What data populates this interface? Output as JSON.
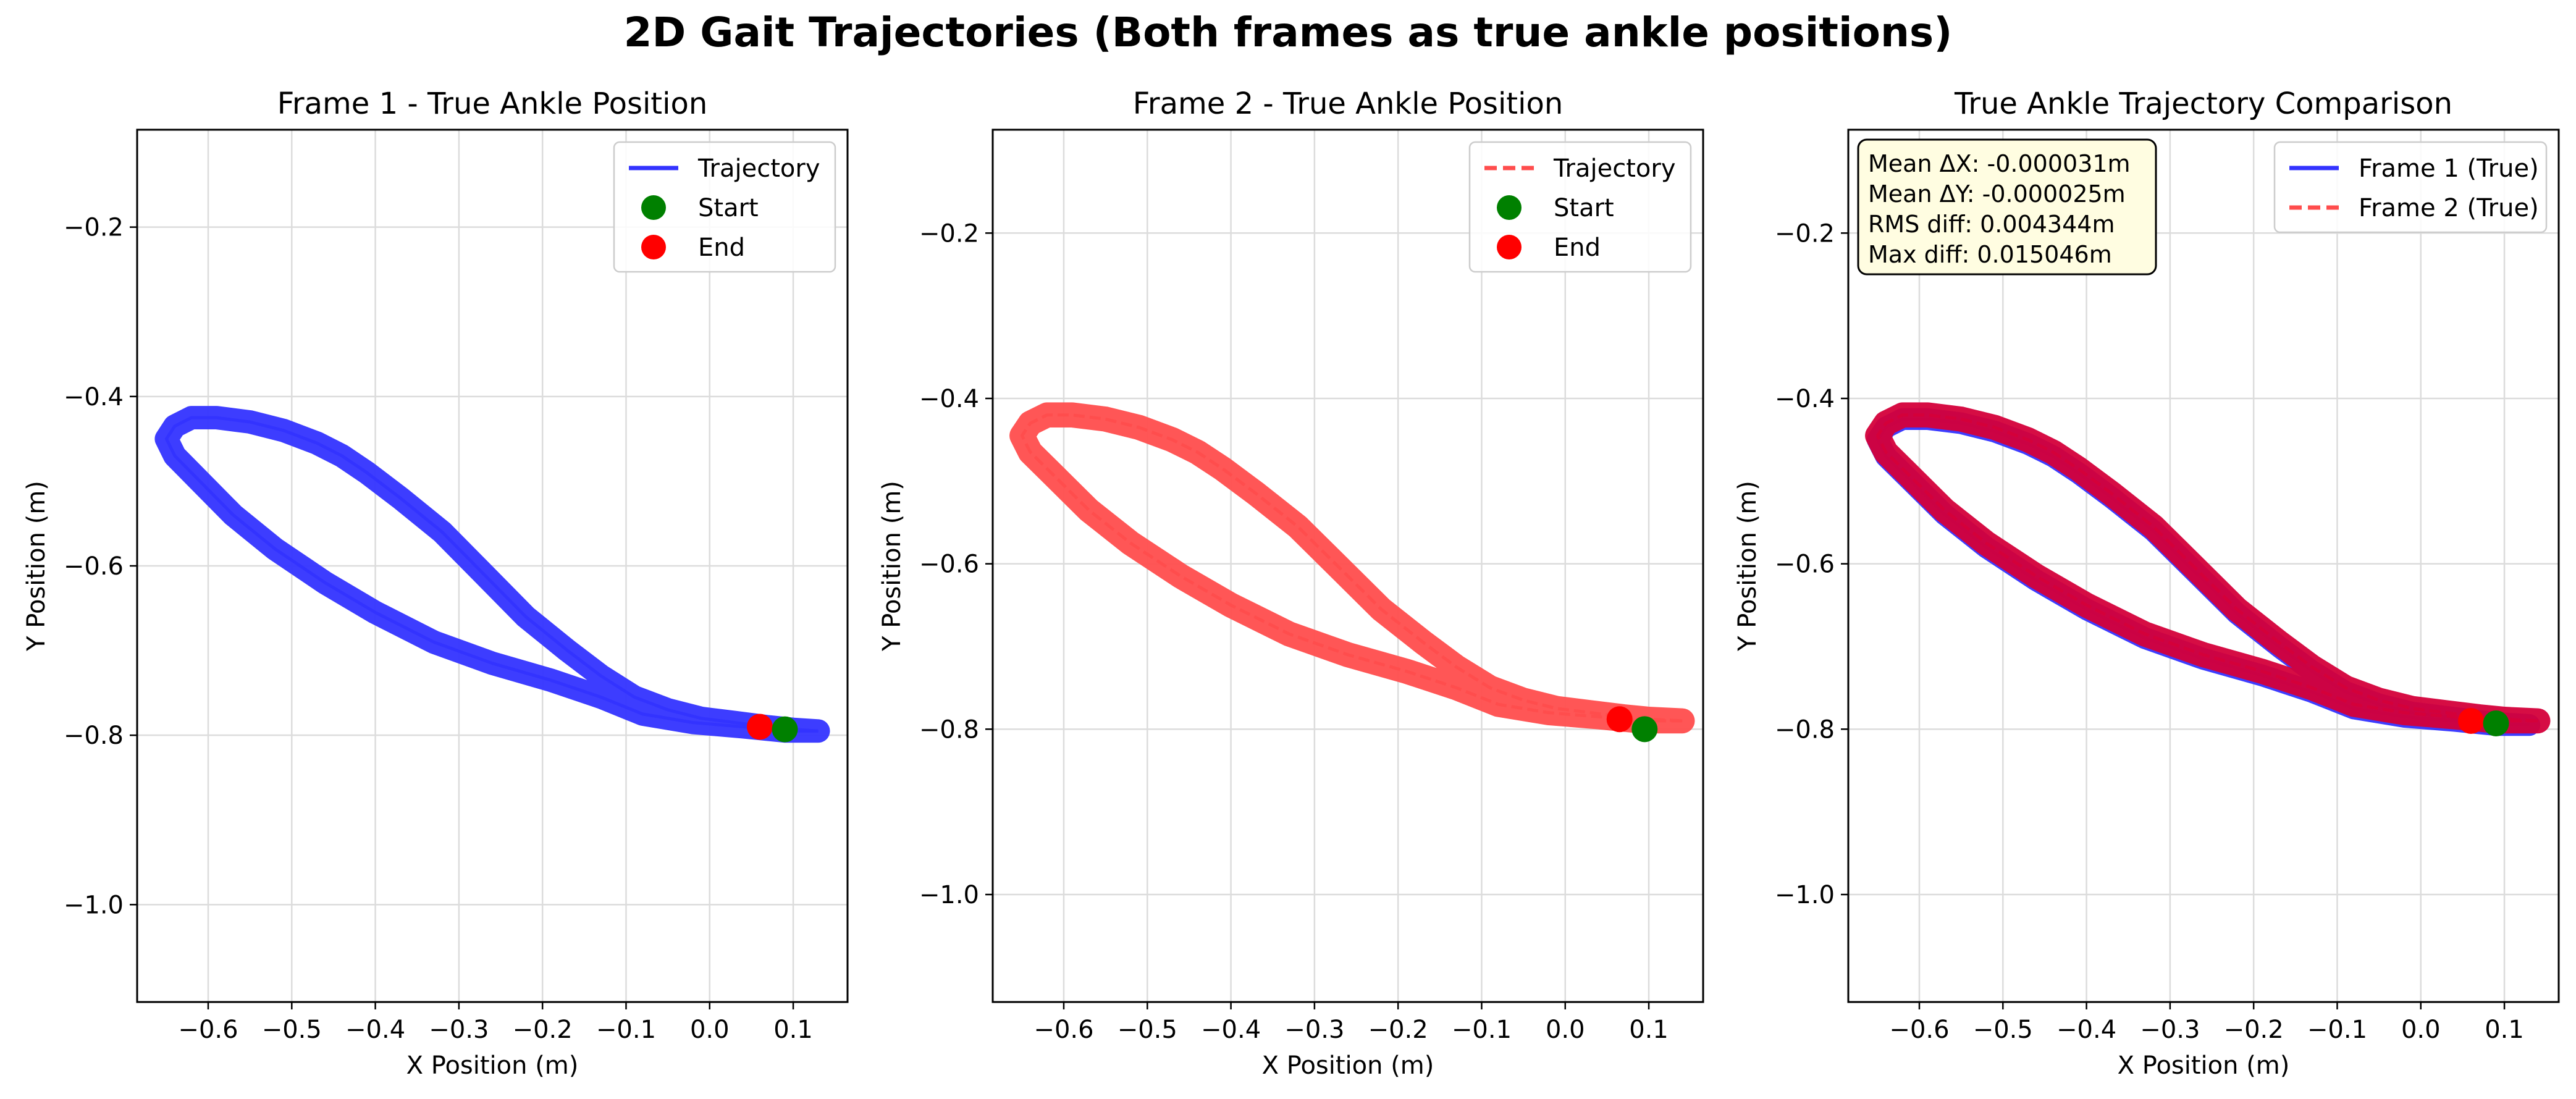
{
  "figure": {
    "suptitle": "2D Gait Trajectories (Both frames as true ankle positions)"
  },
  "colors": {
    "frame1": "#3333ff",
    "frame2": "#ff4d4d",
    "overlap": "#d4003a",
    "start": "#008000",
    "end": "#ff0000",
    "stats_box_fill": "#fffde1"
  },
  "chart_data": [
    {
      "type": "line",
      "title": "Frame 1 - True Ankle Position",
      "xlabel": "X Position (m)",
      "ylabel": "Y Position (m)",
      "xlim": [
        -0.685,
        0.165
      ],
      "ylim": [
        -1.115,
        -0.085
      ],
      "xticks": [
        "−0.6",
        "−0.5",
        "−0.4",
        "−0.3",
        "−0.2",
        "−0.1",
        "0.0",
        "0.1"
      ],
      "yticks": [
        "−0.2",
        "−0.4",
        "−0.6",
        "−0.8",
        "−1.0"
      ],
      "grid": true,
      "legend_position": "top-right",
      "legend": [
        {
          "label": "Trajectory",
          "style": "solid-line",
          "color": "#3333ff"
        },
        {
          "label": "Start",
          "style": "marker",
          "color": "#008000"
        },
        {
          "label": "End",
          "style": "marker",
          "color": "#ff0000"
        }
      ],
      "series": [
        {
          "name": "Trajectory",
          "style": "solid",
          "color": "#3333ff",
          "band_width": 0.028,
          "x": [
            0.13,
            0.09,
            0.04,
            -0.02,
            -0.08,
            -0.13,
            -0.19,
            -0.26,
            -0.33,
            -0.4,
            -0.46,
            -0.52,
            -0.57,
            -0.61,
            -0.64,
            -0.65,
            -0.64,
            -0.62,
            -0.59,
            -0.55,
            -0.51,
            -0.47,
            -0.44,
            -0.41,
            -0.37,
            -0.32,
            -0.27,
            -0.22,
            -0.17,
            -0.13,
            -0.09,
            -0.05,
            -0.01,
            0.03,
            0.07,
            0.1,
            0.13
          ],
          "y": [
            -0.795,
            -0.795,
            -0.79,
            -0.785,
            -0.775,
            -0.755,
            -0.735,
            -0.715,
            -0.69,
            -0.655,
            -0.62,
            -0.58,
            -0.54,
            -0.5,
            -0.47,
            -0.45,
            -0.435,
            -0.425,
            -0.425,
            -0.43,
            -0.44,
            -0.455,
            -0.47,
            -0.49,
            -0.52,
            -0.56,
            -0.61,
            -0.66,
            -0.7,
            -0.73,
            -0.755,
            -0.77,
            -0.78,
            -0.785,
            -0.79,
            -0.793,
            -0.795
          ]
        }
      ],
      "start_point": {
        "x": 0.09,
        "y": -0.793
      },
      "end_point": {
        "x": 0.06,
        "y": -0.79
      }
    },
    {
      "type": "line",
      "title": "Frame 2 - True Ankle Position",
      "xlabel": "X Position (m)",
      "ylabel": "Y Position (m)",
      "xlim": [
        -0.685,
        0.165
      ],
      "ylim": [
        -1.13,
        -0.075
      ],
      "xticks": [
        "−0.6",
        "−0.5",
        "−0.4",
        "−0.3",
        "−0.2",
        "−0.1",
        "0.0",
        "0.1"
      ],
      "yticks": [
        "−0.2",
        "−0.4",
        "−0.6",
        "−0.8",
        "−1.0"
      ],
      "grid": true,
      "legend_position": "top-right",
      "legend": [
        {
          "label": "Trajectory",
          "style": "dashed-line",
          "color": "#ff4d4d"
        },
        {
          "label": "Start",
          "style": "marker",
          "color": "#008000"
        },
        {
          "label": "End",
          "style": "marker",
          "color": "#ff0000"
        }
      ],
      "series": [
        {
          "name": "Trajectory",
          "style": "dashed",
          "color": "#ff4d4d",
          "band_width": 0.03,
          "x": [
            0.14,
            0.09,
            0.04,
            -0.02,
            -0.08,
            -0.13,
            -0.19,
            -0.26,
            -0.33,
            -0.4,
            -0.46,
            -0.52,
            -0.57,
            -0.61,
            -0.64,
            -0.65,
            -0.64,
            -0.62,
            -0.59,
            -0.55,
            -0.51,
            -0.47,
            -0.44,
            -0.41,
            -0.37,
            -0.32,
            -0.27,
            -0.22,
            -0.17,
            -0.13,
            -0.09,
            -0.05,
            -0.01,
            0.03,
            0.07,
            0.1,
            0.14
          ],
          "y": [
            -0.79,
            -0.79,
            -0.785,
            -0.78,
            -0.77,
            -0.75,
            -0.73,
            -0.71,
            -0.685,
            -0.65,
            -0.615,
            -0.575,
            -0.535,
            -0.495,
            -0.465,
            -0.445,
            -0.43,
            -0.42,
            -0.42,
            -0.425,
            -0.435,
            -0.45,
            -0.465,
            -0.485,
            -0.515,
            -0.555,
            -0.605,
            -0.655,
            -0.695,
            -0.725,
            -0.75,
            -0.765,
            -0.775,
            -0.78,
            -0.785,
            -0.788,
            -0.79
          ]
        }
      ],
      "start_point": {
        "x": 0.095,
        "y": -0.8
      },
      "end_point": {
        "x": 0.065,
        "y": -0.788
      }
    },
    {
      "type": "line",
      "title": "True Ankle Trajectory Comparison",
      "xlabel": "X Position (m)",
      "ylabel": "Y Position (m)",
      "xlim": [
        -0.685,
        0.165
      ],
      "ylim": [
        -1.13,
        -0.075
      ],
      "xticks": [
        "−0.6",
        "−0.5",
        "−0.4",
        "−0.3",
        "−0.2",
        "−0.1",
        "0.0",
        "0.1"
      ],
      "yticks": [
        "−0.2",
        "−0.4",
        "−0.6",
        "−0.8",
        "−1.0"
      ],
      "grid": true,
      "legend_position": "top-right",
      "legend": [
        {
          "label": "Frame 1 (True)",
          "style": "solid-line",
          "color": "#3333ff"
        },
        {
          "label": "Frame 2 (True)",
          "style": "dashed-line",
          "color": "#ff4d4d"
        }
      ],
      "annotation": {
        "lines": [
          "Mean ΔX: -0.000031m",
          "Mean ΔY: -0.000025m",
          "RMS diff: 0.004344m",
          "Max diff: 0.015046m"
        ],
        "position": "top-left"
      },
      "series": [
        {
          "name": "Frame 1 (True)",
          "style": "solid",
          "color": "#3333ff",
          "band_width": 0.026,
          "x": [
            0.13,
            0.09,
            0.04,
            -0.02,
            -0.08,
            -0.13,
            -0.19,
            -0.26,
            -0.33,
            -0.4,
            -0.46,
            -0.52,
            -0.57,
            -0.61,
            -0.64,
            -0.65,
            -0.64,
            -0.62,
            -0.59,
            -0.55,
            -0.51,
            -0.47,
            -0.44,
            -0.41,
            -0.37,
            -0.32,
            -0.27,
            -0.22,
            -0.17,
            -0.13,
            -0.09,
            -0.05,
            -0.01,
            0.03,
            0.07,
            0.1,
            0.13
          ],
          "y": [
            -0.795,
            -0.795,
            -0.79,
            -0.785,
            -0.775,
            -0.755,
            -0.735,
            -0.715,
            -0.69,
            -0.655,
            -0.62,
            -0.58,
            -0.54,
            -0.5,
            -0.47,
            -0.45,
            -0.435,
            -0.425,
            -0.425,
            -0.43,
            -0.44,
            -0.455,
            -0.47,
            -0.49,
            -0.52,
            -0.56,
            -0.61,
            -0.66,
            -0.7,
            -0.73,
            -0.755,
            -0.77,
            -0.78,
            -0.785,
            -0.79,
            -0.793,
            -0.795
          ]
        },
        {
          "name": "Frame 2 (True)",
          "style": "dashed",
          "color": "#d4003a",
          "band_width": 0.03,
          "x": [
            0.14,
            0.09,
            0.04,
            -0.02,
            -0.08,
            -0.13,
            -0.19,
            -0.26,
            -0.33,
            -0.4,
            -0.46,
            -0.52,
            -0.57,
            -0.61,
            -0.64,
            -0.65,
            -0.64,
            -0.62,
            -0.59,
            -0.55,
            -0.51,
            -0.47,
            -0.44,
            -0.41,
            -0.37,
            -0.32,
            -0.27,
            -0.22,
            -0.17,
            -0.13,
            -0.09,
            -0.05,
            -0.01,
            0.03,
            0.07,
            0.1,
            0.14
          ],
          "y": [
            -0.79,
            -0.79,
            -0.785,
            -0.78,
            -0.77,
            -0.75,
            -0.73,
            -0.71,
            -0.685,
            -0.65,
            -0.615,
            -0.575,
            -0.535,
            -0.495,
            -0.465,
            -0.445,
            -0.43,
            -0.42,
            -0.42,
            -0.425,
            -0.435,
            -0.45,
            -0.465,
            -0.485,
            -0.515,
            -0.555,
            -0.605,
            -0.655,
            -0.695,
            -0.725,
            -0.75,
            -0.765,
            -0.775,
            -0.78,
            -0.785,
            -0.788,
            -0.79
          ]
        }
      ],
      "start_point": {
        "x": 0.09,
        "y": -0.793
      },
      "end_point": {
        "x": 0.06,
        "y": -0.79
      }
    }
  ]
}
